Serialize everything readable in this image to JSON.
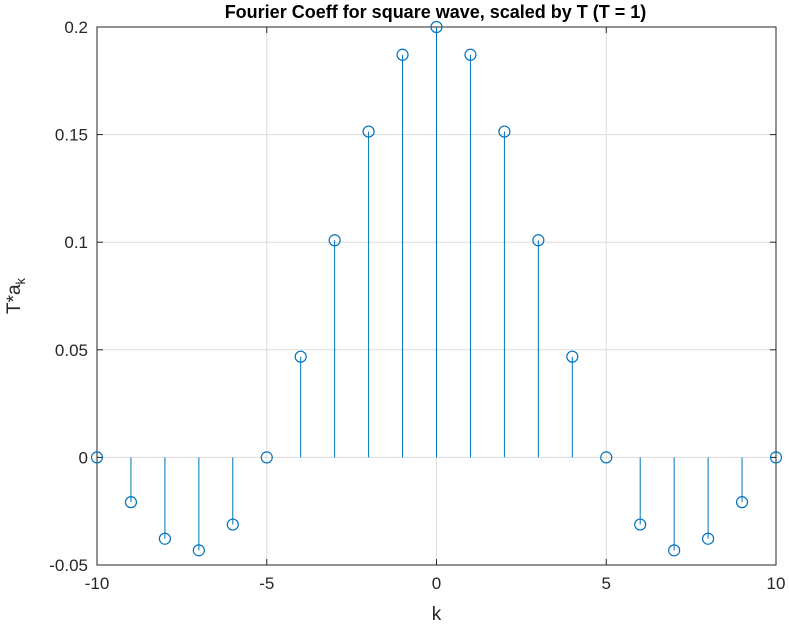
{
  "chart_data": {
    "type": "stem",
    "title": "Fourier Coeff for square wave, scaled by T (T = 1)",
    "xlabel": "k",
    "ylabel_base": "T*a",
    "ylabel_sub": "k",
    "xlim": [
      -10,
      10
    ],
    "ylim": [
      -0.05,
      0.2
    ],
    "xticks": [
      -10,
      -5,
      0,
      5,
      10
    ],
    "xtick_labels": [
      "-10",
      "-5",
      "0",
      "5",
      "10"
    ],
    "yticks": [
      -0.05,
      0,
      0.05,
      0.1,
      0.15,
      0.2
    ],
    "ytick_labels": [
      "-0.05",
      "0",
      "0.05",
      "0.1",
      "0.15",
      "0.2"
    ],
    "grid": true,
    "color": "#0072BD",
    "k": [
      -10,
      -9,
      -8,
      -7,
      -6,
      -5,
      -4,
      -3,
      -2,
      -1,
      0,
      1,
      2,
      3,
      4,
      5,
      6,
      7,
      8,
      9,
      10
    ],
    "values": [
      0,
      -0.0208,
      -0.0378,
      -0.0432,
      -0.0312,
      0,
      0.0468,
      0.1009,
      0.1514,
      0.1871,
      0.2,
      0.1871,
      0.1514,
      0.1009,
      0.0468,
      0,
      -0.0312,
      -0.0432,
      -0.0378,
      -0.0208,
      0
    ]
  }
}
